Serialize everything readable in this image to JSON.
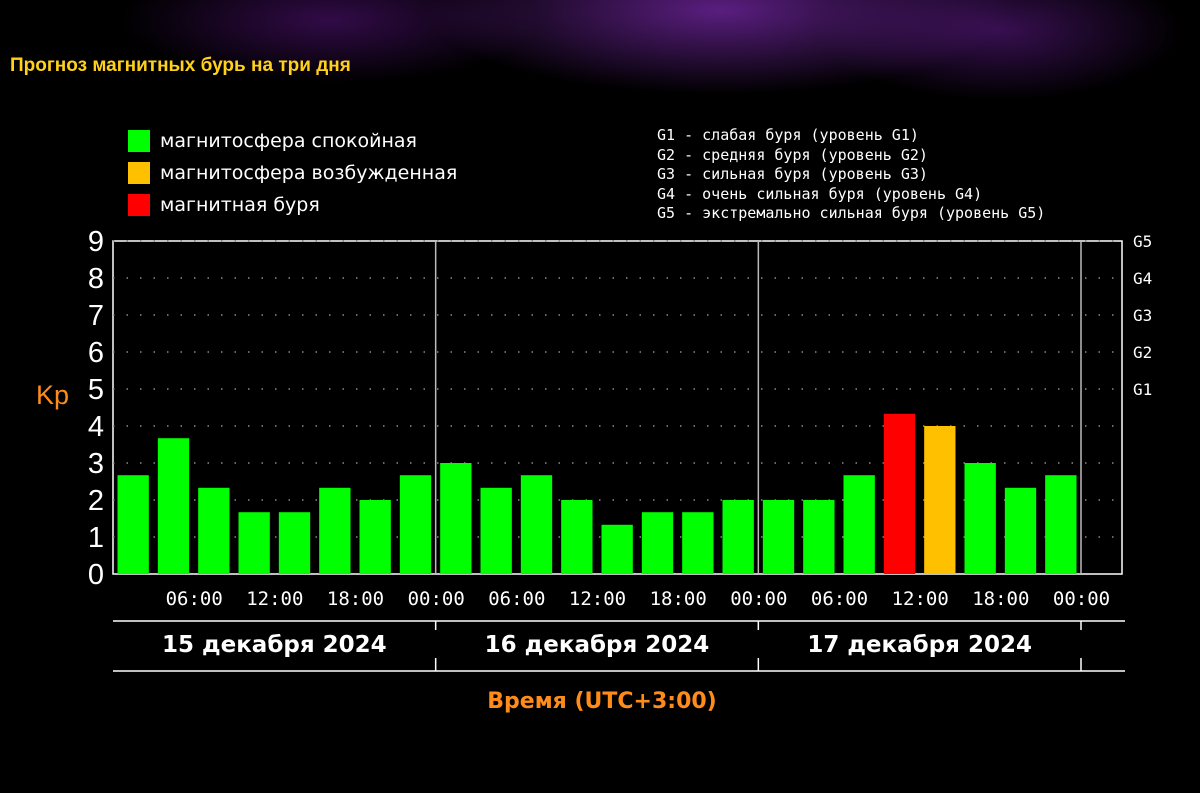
{
  "page": {
    "title": "Прогноз магнитных бурь на три дня"
  },
  "colors": {
    "quiet": "#00ff00",
    "excited": "#ffc000",
    "storm": "#ff0000",
    "title": "#ffd11a",
    "axis_title": "#ff8c1a"
  },
  "legend": [
    {
      "label": "магнитосфера спокойная",
      "color": "#00ff00"
    },
    {
      "label": "магнитосфера возбужденная",
      "color": "#ffc000"
    },
    {
      "label": "магнитная буря",
      "color": "#ff0000"
    }
  ],
  "g_levels": [
    "G1 - слабая буря (уровень G1)",
    "G2 - средняя буря (уровень G2)",
    "G3 - сильная буря (уровень G3)",
    "G4 - очень сильная буря (уровень G4)",
    "G5 - экстремально сильная буря (уровень G5)"
  ],
  "chart_data": {
    "type": "bar",
    "ylabel": "Kp",
    "xlabel": "Время (UTC+3:00)",
    "ylim": [
      0,
      9
    ],
    "yticks": [
      "0",
      "1",
      "2",
      "3",
      "4",
      "5",
      "6",
      "7",
      "8",
      "9"
    ],
    "right_ticks": [
      {
        "label": "G1",
        "value": 5
      },
      {
        "label": "G2",
        "value": 6
      },
      {
        "label": "G3",
        "value": 7
      },
      {
        "label": "G4",
        "value": 8
      },
      {
        "label": "G5",
        "value": 9
      }
    ],
    "grid": true,
    "xtick_labels": [
      "06:00",
      "12:00",
      "18:00",
      "00:00",
      "06:00",
      "12:00",
      "18:00",
      "00:00",
      "06:00",
      "12:00",
      "18:00",
      "00:00"
    ],
    "days": [
      "15 декабря 2024",
      "16 декабря 2024",
      "17 декабря 2024"
    ],
    "values": [
      2.67,
      3.67,
      2.33,
      1.67,
      1.67,
      2.33,
      2.0,
      2.67,
      3.0,
      2.33,
      2.67,
      2.0,
      1.33,
      1.67,
      1.67,
      2.0,
      2.0,
      2.0,
      2.67,
      4.33,
      4.0,
      3.0,
      2.33,
      2.67
    ],
    "levels": [
      "quiet",
      "quiet",
      "quiet",
      "quiet",
      "quiet",
      "quiet",
      "quiet",
      "quiet",
      "quiet",
      "quiet",
      "quiet",
      "quiet",
      "quiet",
      "quiet",
      "quiet",
      "quiet",
      "quiet",
      "quiet",
      "quiet",
      "storm",
      "excited",
      "quiet",
      "quiet",
      "quiet"
    ]
  }
}
